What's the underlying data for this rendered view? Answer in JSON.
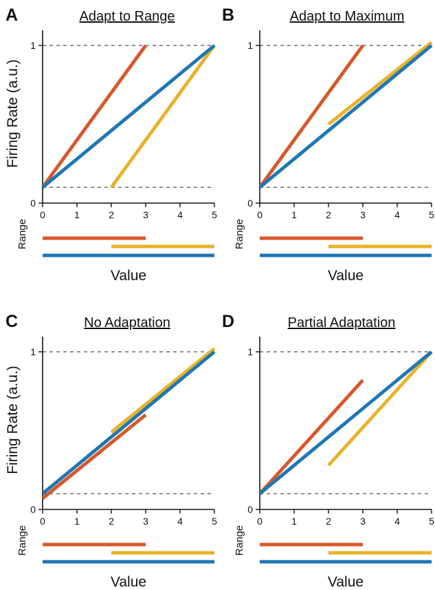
{
  "figure": {
    "ylabel": "Firing Rate  (a.u.)",
    "range_label": "Range",
    "colors": {
      "red": "#d9572b",
      "yellow": "#e8b32a",
      "blue": "#1f77b4"
    }
  },
  "chart_data": [
    {
      "type": "line",
      "panel": "A",
      "title": "Adapt to Range",
      "xlabel": "Value",
      "xlim": [
        0,
        5
      ],
      "ylim": [
        0,
        1
      ],
      "x_ticks": [
        "0",
        "1",
        "2",
        "3",
        "4",
        "5"
      ],
      "y_ticks": [
        "0",
        "1"
      ],
      "reference_lines_y": [
        0.1,
        1
      ],
      "series": [
        {
          "color": "#d9572b",
          "x": [
            0,
            3
          ],
          "y": [
            0.1,
            1.0
          ]
        },
        {
          "color": "#e8b32a",
          "x": [
            2,
            5
          ],
          "y": [
            0.1,
            1.0
          ]
        },
        {
          "color": "#1f77b4",
          "x": [
            0,
            5
          ],
          "y": [
            0.1,
            1.0
          ]
        }
      ],
      "ranges": [
        {
          "color": "#d9572b",
          "x": [
            0,
            3
          ]
        },
        {
          "color": "#e8b32a",
          "x": [
            2,
            5
          ]
        },
        {
          "color": "#1f77b4",
          "x": [
            0,
            5
          ]
        }
      ]
    },
    {
      "type": "line",
      "panel": "B",
      "title": "Adapt to Maximum",
      "xlabel": "Value",
      "xlim": [
        0,
        5
      ],
      "ylim": [
        0,
        1
      ],
      "x_ticks": [
        "0",
        "1",
        "2",
        "3",
        "4",
        "5"
      ],
      "y_ticks": [
        "0",
        "1"
      ],
      "reference_lines_y": [
        0.1,
        1
      ],
      "series": [
        {
          "color": "#d9572b",
          "x": [
            0,
            3
          ],
          "y": [
            0.1,
            1.0
          ]
        },
        {
          "color": "#e8b32a",
          "x": [
            2,
            5
          ],
          "y": [
            0.5,
            1.02
          ]
        },
        {
          "color": "#1f77b4",
          "x": [
            0,
            5
          ],
          "y": [
            0.1,
            1.0
          ]
        }
      ],
      "ranges": [
        {
          "color": "#d9572b",
          "x": [
            0,
            3
          ]
        },
        {
          "color": "#e8b32a",
          "x": [
            2,
            5
          ]
        },
        {
          "color": "#1f77b4",
          "x": [
            0,
            5
          ]
        }
      ]
    },
    {
      "type": "line",
      "panel": "C",
      "title": "No Adaptation",
      "xlabel": "Value",
      "xlim": [
        0,
        5
      ],
      "ylim": [
        0,
        1
      ],
      "x_ticks": [
        "0",
        "1",
        "2",
        "3",
        "4",
        "5"
      ],
      "y_ticks": [
        "0",
        "1"
      ],
      "reference_lines_y": [
        0.1,
        1
      ],
      "series": [
        {
          "color": "#d9572b",
          "x": [
            0,
            3
          ],
          "y": [
            0.07,
            0.6
          ]
        },
        {
          "color": "#e8b32a",
          "x": [
            2,
            5
          ],
          "y": [
            0.49,
            1.02
          ]
        },
        {
          "color": "#1f77b4",
          "x": [
            0,
            5
          ],
          "y": [
            0.1,
            1.0
          ]
        }
      ],
      "ranges": [
        {
          "color": "#d9572b",
          "x": [
            0,
            3
          ]
        },
        {
          "color": "#e8b32a",
          "x": [
            2,
            5
          ]
        },
        {
          "color": "#1f77b4",
          "x": [
            0,
            5
          ]
        }
      ]
    },
    {
      "type": "line",
      "panel": "D",
      "title": "Partial Adaptation",
      "xlabel": "Value",
      "xlim": [
        0,
        5
      ],
      "ylim": [
        0,
        1
      ],
      "x_ticks": [
        "0",
        "1",
        "2",
        "3",
        "4",
        "5"
      ],
      "y_ticks": [
        "0",
        "1"
      ],
      "reference_lines_y": [
        0.1,
        1
      ],
      "series": [
        {
          "color": "#d9572b",
          "x": [
            0,
            3
          ],
          "y": [
            0.1,
            0.82
          ]
        },
        {
          "color": "#e8b32a",
          "x": [
            2,
            5
          ],
          "y": [
            0.28,
            1.0
          ]
        },
        {
          "color": "#1f77b4",
          "x": [
            0,
            5
          ],
          "y": [
            0.1,
            1.0
          ]
        }
      ],
      "ranges": [
        {
          "color": "#d9572b",
          "x": [
            0,
            3
          ]
        },
        {
          "color": "#e8b32a",
          "x": [
            2,
            5
          ]
        },
        {
          "color": "#1f77b4",
          "x": [
            0,
            5
          ]
        }
      ]
    }
  ]
}
